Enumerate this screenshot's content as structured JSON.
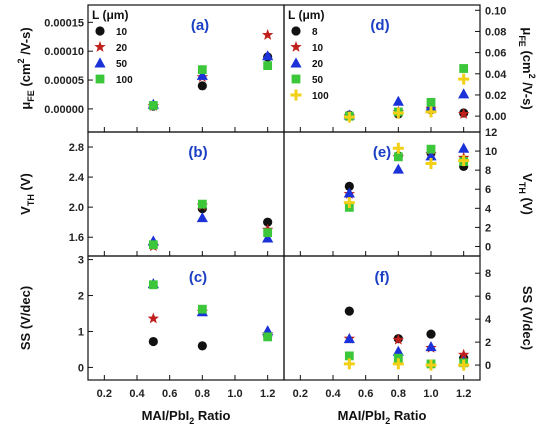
{
  "chart_data": [
    {
      "id": "a",
      "type": "scatter",
      "panel_label": "(a)",
      "xlim": [
        0.1,
        1.3
      ],
      "ylim": [
        -4e-05,
        0.00018
      ],
      "yticks": [
        "0.00000",
        "0.00005",
        "0.00010",
        "0.00015"
      ],
      "ylabel": {
        "main": "μ",
        "sub": "FE",
        "rest": " (cm",
        "sup": "2",
        "tail": " /V-s)"
      },
      "legend_title": "L (μm)",
      "series": [
        {
          "name": "10",
          "marker": "circle",
          "color": "#111111",
          "points": [
            [
              0.5,
              5e-06
            ],
            [
              0.8,
              4e-05
            ],
            [
              1.2,
              9e-05
            ]
          ]
        },
        {
          "name": "20",
          "marker": "star",
          "color": "#c0201c",
          "points": [
            [
              0.5,
              5e-06
            ],
            [
              0.8,
              5.5e-05
            ],
            [
              1.2,
              0.000128
            ]
          ]
        },
        {
          "name": "50",
          "marker": "triangle",
          "color": "#1a32d8",
          "points": [
            [
              0.5,
              8e-06
            ],
            [
              0.8,
              5.8e-05
            ],
            [
              1.2,
              9.2e-05
            ]
          ]
        },
        {
          "name": "100",
          "marker": "square",
          "color": "#3cc63a",
          "points": [
            [
              0.5,
              6e-06
            ],
            [
              0.8,
              6.8e-05
            ],
            [
              1.2,
              7.5e-05
            ]
          ]
        }
      ]
    },
    {
      "id": "d",
      "type": "scatter",
      "panel_label": "(d)",
      "xlim": [
        0.1,
        1.3
      ],
      "ylim": [
        -0.015,
        0.105
      ],
      "yticks": [
        "0.00",
        "0.02",
        "0.04",
        "0.06",
        "0.08",
        "0.10"
      ],
      "ylabel": {
        "main": "μ",
        "sub": "FE",
        "rest": " (cm",
        "sup": "2",
        "tail": " /V-s)"
      },
      "legend_title": "L (μm)",
      "series": [
        {
          "name": "8",
          "marker": "circle",
          "color": "#111111",
          "points": [
            [
              0.5,
              0.001
            ],
            [
              0.8,
              0.002
            ],
            [
              1.0,
              0.006
            ],
            [
              1.2,
              0.003
            ]
          ]
        },
        {
          "name": "10",
          "marker": "star",
          "color": "#c0201c",
          "points": [
            [
              0.5,
              0.0
            ],
            [
              0.8,
              0.004
            ],
            [
              1.0,
              0.007
            ],
            [
              1.2,
              0.002
            ]
          ]
        },
        {
          "name": "20",
          "marker": "triangle",
          "color": "#1a32d8",
          "points": [
            [
              0.5,
              0.001
            ],
            [
              0.8,
              0.014
            ],
            [
              1.0,
              0.009
            ],
            [
              1.2,
              0.021
            ]
          ]
        },
        {
          "name": "50",
          "marker": "square",
          "color": "#3cc63a",
          "points": [
            [
              0.5,
              0.0
            ],
            [
              0.8,
              0.004
            ],
            [
              1.0,
              0.013
            ],
            [
              1.2,
              0.045
            ]
          ]
        },
        {
          "name": "100",
          "marker": "plus",
          "color": "#f2d017",
          "points": [
            [
              0.5,
              -0.001
            ],
            [
              0.8,
              0.003
            ],
            [
              1.0,
              0.004
            ],
            [
              1.2,
              0.035
            ]
          ]
        }
      ]
    },
    {
      "id": "b",
      "type": "scatter",
      "panel_label": "(b)",
      "xlim": [
        0.1,
        1.3
      ],
      "ylim": [
        1.35,
        3.0
      ],
      "yticks": [
        "1.6",
        "2.0",
        "2.4",
        "2.8"
      ],
      "ylabel": {
        "main": "V",
        "sub": "TH",
        "rest": " (V)",
        "sup": "",
        "tail": ""
      },
      "series": [
        {
          "name": "10",
          "marker": "circle",
          "color": "#111111",
          "points": [
            [
              0.5,
              1.5
            ],
            [
              0.8,
              1.98
            ],
            [
              1.2,
              1.8
            ]
          ]
        },
        {
          "name": "20",
          "marker": "star",
          "color": "#c0201c",
          "points": [
            [
              0.5,
              1.48
            ],
            [
              0.8,
              2.02
            ],
            [
              1.2,
              1.7
            ]
          ]
        },
        {
          "name": "50",
          "marker": "triangle",
          "color": "#1a32d8",
          "points": [
            [
              0.5,
              1.55
            ],
            [
              0.8,
              1.86
            ],
            [
              1.2,
              1.59
            ]
          ]
        },
        {
          "name": "100",
          "marker": "square",
          "color": "#3cc63a",
          "points": [
            [
              0.5,
              1.5
            ],
            [
              0.8,
              2.04
            ],
            [
              1.2,
              1.66
            ]
          ]
        }
      ]
    },
    {
      "id": "e",
      "type": "scatter",
      "panel_label": "(e)",
      "xlim": [
        0.1,
        1.3
      ],
      "ylim": [
        -1,
        12
      ],
      "yticks": [
        "0",
        "2",
        "4",
        "6",
        "8",
        "10",
        "12"
      ],
      "ylabel": {
        "main": "V",
        "sub": "TH",
        "rest": " (V)",
        "sup": "",
        "tail": ""
      },
      "series": [
        {
          "name": "8",
          "marker": "circle",
          "color": "#111111",
          "points": [
            [
              0.5,
              6.3
            ],
            [
              0.8,
              9.5
            ],
            [
              1.0,
              9.8
            ],
            [
              1.2,
              8.4
            ]
          ]
        },
        {
          "name": "10",
          "marker": "star",
          "color": "#c0201c",
          "points": [
            [
              0.5,
              5.5
            ],
            [
              0.8,
              9.4
            ],
            [
              1.0,
              9.7
            ],
            [
              1.2,
              9.3
            ]
          ]
        },
        {
          "name": "20",
          "marker": "triangle",
          "color": "#1a32d8",
          "points": [
            [
              0.5,
              5.6
            ],
            [
              0.8,
              8.1
            ],
            [
              1.0,
              9.5
            ],
            [
              1.2,
              10.3
            ]
          ]
        },
        {
          "name": "50",
          "marker": "square",
          "color": "#3cc63a",
          "points": [
            [
              0.5,
              4.1
            ],
            [
              0.8,
              9.4
            ],
            [
              1.0,
              10.2
            ],
            [
              1.2,
              8.9
            ]
          ]
        },
        {
          "name": "100",
          "marker": "plus",
          "color": "#f2d017",
          "points": [
            [
              0.5,
              4.6
            ],
            [
              0.8,
              10.3
            ],
            [
              1.0,
              8.7
            ],
            [
              1.2,
              9.0
            ]
          ]
        }
      ]
    },
    {
      "id": "c",
      "type": "scatter",
      "panel_label": "(c)",
      "xlim": [
        0.1,
        1.3
      ],
      "ylim": [
        -0.35,
        3.1
      ],
      "yticks": [
        "0",
        "1",
        "2",
        "3"
      ],
      "ylabel": {
        "main": "SS (V/dec)",
        "sub": "",
        "rest": "",
        "sup": "",
        "tail": ""
      },
      "xticks": [
        "0.2",
        "0.4",
        "0.6",
        "0.8",
        "1.0",
        "1.2"
      ],
      "xlabel": {
        "main": "MAI/PbI",
        "sub": "2",
        "rest": " Ratio"
      },
      "series": [
        {
          "name": "10",
          "marker": "circle",
          "color": "#111111",
          "points": [
            [
              0.5,
              0.72
            ],
            [
              0.8,
              0.6
            ],
            [
              1.2,
              0.88
            ]
          ]
        },
        {
          "name": "20",
          "marker": "star",
          "color": "#c0201c",
          "points": [
            [
              0.5,
              1.36
            ],
            [
              0.8,
              1.55
            ],
            [
              1.2,
              0.92
            ]
          ]
        },
        {
          "name": "50",
          "marker": "triangle",
          "color": "#1a32d8",
          "points": [
            [
              0.5,
              2.33
            ],
            [
              0.8,
              1.55
            ],
            [
              1.2,
              1.02
            ]
          ]
        },
        {
          "name": "100",
          "marker": "square",
          "color": "#3cc63a",
          "points": [
            [
              0.5,
              2.3
            ],
            [
              0.8,
              1.62
            ],
            [
              1.2,
              0.85
            ]
          ]
        }
      ]
    },
    {
      "id": "f",
      "type": "scatter",
      "panel_label": "(f)",
      "xlim": [
        0.1,
        1.3
      ],
      "ylim": [
        -1.3,
        9.5
      ],
      "yticks": [
        "0",
        "2",
        "4",
        "6",
        "8"
      ],
      "ylabel": {
        "main": "SS (V/dec)",
        "sub": "",
        "rest": "",
        "sup": "",
        "tail": ""
      },
      "xticks": [
        "0.2",
        "0.4",
        "0.6",
        "0.8",
        "1.0",
        "1.2"
      ],
      "xlabel": {
        "main": "MAI/PbI",
        "sub": "2",
        "rest": " Ratio"
      },
      "series": [
        {
          "name": "8",
          "marker": "circle",
          "color": "#111111",
          "points": [
            [
              0.5,
              4.7
            ],
            [
              0.8,
              2.3
            ],
            [
              1.0,
              2.7
            ],
            [
              1.2,
              0.6
            ]
          ]
        },
        {
          "name": "10",
          "marker": "star",
          "color": "#c0201c",
          "points": [
            [
              0.5,
              2.3
            ],
            [
              0.8,
              2.2
            ],
            [
              1.0,
              1.5
            ],
            [
              1.2,
              0.9
            ]
          ]
        },
        {
          "name": "20",
          "marker": "triangle",
          "color": "#1a32d8",
          "points": [
            [
              0.5,
              2.3
            ],
            [
              0.8,
              1.2
            ],
            [
              1.0,
              1.6
            ],
            [
              1.2,
              0.3
            ]
          ]
        },
        {
          "name": "50",
          "marker": "square",
          "color": "#3cc63a",
          "points": [
            [
              0.5,
              0.8
            ],
            [
              0.8,
              0.6
            ],
            [
              1.0,
              0.1
            ],
            [
              1.2,
              0.2
            ]
          ]
        },
        {
          "name": "100",
          "marker": "plus",
          "color": "#f2d017",
          "points": [
            [
              0.5,
              0.1
            ],
            [
              0.8,
              0.1
            ],
            [
              1.0,
              0.0
            ],
            [
              1.2,
              0.0
            ]
          ]
        }
      ]
    }
  ]
}
